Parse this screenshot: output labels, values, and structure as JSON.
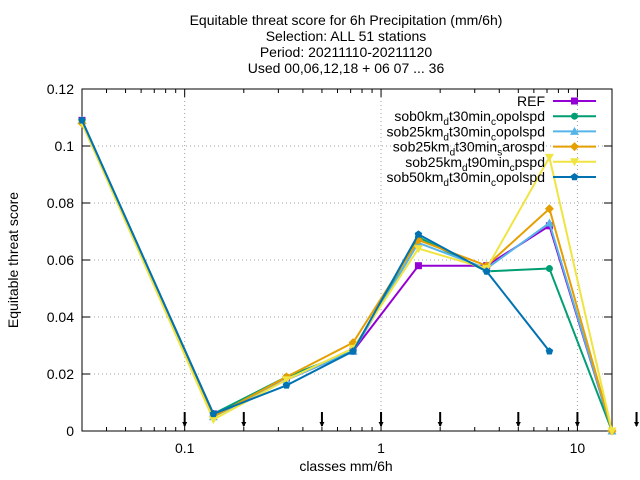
{
  "chart_data": {
    "type": "line",
    "title_lines": [
      "Equitable threat score  for 6h Precipitation (mm/6h)",
      "Selection: ALL      51 stations",
      "Period: 20211110-20211120",
      "Used 00,06,12,18 + 06 07 ... 36"
    ],
    "xlabel": "classes mm/6h",
    "ylabel": "Equitable threat score",
    "xscale": "log",
    "xlim": [
      0.03,
      15
    ],
    "ylim": [
      0,
      0.12
    ],
    "xticks": [
      {
        "v": 0.1,
        "label": "0.1"
      },
      {
        "v": 1,
        "label": "1"
      },
      {
        "v": 10,
        "label": "10"
      }
    ],
    "yticks": [
      {
        "v": 0,
        "label": "0"
      },
      {
        "v": 0.02,
        "label": "0.02"
      },
      {
        "v": 0.04,
        "label": "0.04"
      },
      {
        "v": 0.06,
        "label": "0.06"
      },
      {
        "v": 0.08,
        "label": "0.08"
      },
      {
        "v": 0.1,
        "label": "0.1"
      },
      {
        "v": 0.12,
        "label": "0.12"
      }
    ],
    "grid": true,
    "legend_position": "top-right",
    "threshold_marks": [
      0.1,
      0.2,
      0.5,
      1,
      2,
      5,
      10,
      20
    ],
    "series": [
      {
        "name": "REF",
        "legend_parts": [
          [
            "REF",
            ""
          ]
        ],
        "color": "#9400d3",
        "marker": "square",
        "points": [
          [
            0.03,
            0.109
          ],
          [
            0.14,
            0.006
          ],
          [
            0.33,
            0.018
          ],
          [
            0.72,
            0.028
          ],
          [
            1.55,
            0.058
          ],
          [
            3.45,
            0.058
          ],
          [
            7.2,
            0.072
          ],
          [
            15,
            0.0
          ]
        ]
      },
      {
        "name": "sob0km_d t30min_c opolspd",
        "legend_parts": [
          [
            "sob0km",
            ""
          ],
          [
            "d",
            "sub"
          ],
          [
            "t30min",
            ""
          ],
          [
            "c",
            "sub"
          ],
          [
            "opolspd",
            ""
          ]
        ],
        "color": "#009e73",
        "marker": "circle",
        "points": [
          [
            0.03,
            0.109
          ],
          [
            0.14,
            0.006
          ],
          [
            0.33,
            0.019
          ],
          [
            0.72,
            0.028
          ],
          [
            1.55,
            0.068
          ],
          [
            3.45,
            0.056
          ],
          [
            7.2,
            0.057
          ],
          [
            15,
            0.0
          ]
        ]
      },
      {
        "name": "sob25km_d t30min_c opolspd",
        "legend_parts": [
          [
            "sob25km",
            ""
          ],
          [
            "d",
            "sub"
          ],
          [
            "t30min",
            ""
          ],
          [
            "c",
            "sub"
          ],
          [
            "opolspd",
            ""
          ]
        ],
        "color": "#56b4e9",
        "marker": "triangle",
        "points": [
          [
            0.03,
            0.109
          ],
          [
            0.14,
            0.005
          ],
          [
            0.33,
            0.018
          ],
          [
            0.72,
            0.028
          ],
          [
            1.55,
            0.066
          ],
          [
            3.45,
            0.057
          ],
          [
            7.2,
            0.073
          ],
          [
            15,
            0.0
          ]
        ]
      },
      {
        "name": "sob25km_d t30min_s arospd",
        "legend_parts": [
          [
            "sob25km",
            ""
          ],
          [
            "d",
            "sub"
          ],
          [
            "t30min",
            ""
          ],
          [
            "s",
            "sub"
          ],
          [
            "arospd",
            ""
          ]
        ],
        "color": "#e69f00",
        "marker": "diamond",
        "points": [
          [
            0.03,
            0.108
          ],
          [
            0.14,
            0.005
          ],
          [
            0.33,
            0.019
          ],
          [
            0.72,
            0.031
          ],
          [
            1.55,
            0.067
          ],
          [
            3.45,
            0.058
          ],
          [
            7.2,
            0.078
          ],
          [
            15,
            0.0
          ]
        ]
      },
      {
        "name": "sob25km_d t90min_c pspd",
        "legend_parts": [
          [
            "sob25km",
            ""
          ],
          [
            "d",
            "sub"
          ],
          [
            "t90min",
            ""
          ],
          [
            "c",
            "sub"
          ],
          [
            "pspd",
            ""
          ]
        ],
        "color": "#f0e442",
        "marker": "invtriangle",
        "points": [
          [
            0.03,
            0.108
          ],
          [
            0.14,
            0.004
          ],
          [
            0.33,
            0.018
          ],
          [
            0.72,
            0.029
          ],
          [
            1.55,
            0.064
          ],
          [
            3.45,
            0.057
          ],
          [
            7.2,
            0.096
          ],
          [
            15,
            0.0
          ]
        ]
      },
      {
        "name": "sob50km_d t30min_c opolspd",
        "legend_parts": [
          [
            "sob50km",
            ""
          ],
          [
            "d",
            "sub"
          ],
          [
            "t30min",
            ""
          ],
          [
            "c",
            "sub"
          ],
          [
            "opolspd",
            ""
          ]
        ],
        "color": "#0072b2",
        "marker": "pentagon",
        "points": [
          [
            0.03,
            0.109
          ],
          [
            0.14,
            0.006
          ],
          [
            0.33,
            0.016
          ],
          [
            0.72,
            0.028
          ],
          [
            1.55,
            0.069
          ],
          [
            3.45,
            0.056
          ],
          [
            7.2,
            0.028
          ]
        ]
      }
    ]
  }
}
